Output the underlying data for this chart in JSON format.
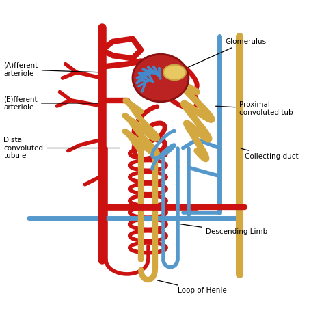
{
  "background_color": "#ffffff",
  "red_color": "#CC1111",
  "blue_color": "#5599CC",
  "yellow_color": "#D4A840",
  "labels": {
    "glomerulus": "Glomerulus",
    "afferent": "(A)fferent\narteriole",
    "efferent": "(E)fferent\narteriole",
    "proximal": "Proximal\nconvoluted tub",
    "collecting": "Collecting duct",
    "distal": "Distal\nconvoluted\ntubule",
    "descending": "Descending Limb",
    "loop": "Loop of Henle"
  },
  "figsize": [
    4.74,
    4.74
  ],
  "dpi": 100
}
